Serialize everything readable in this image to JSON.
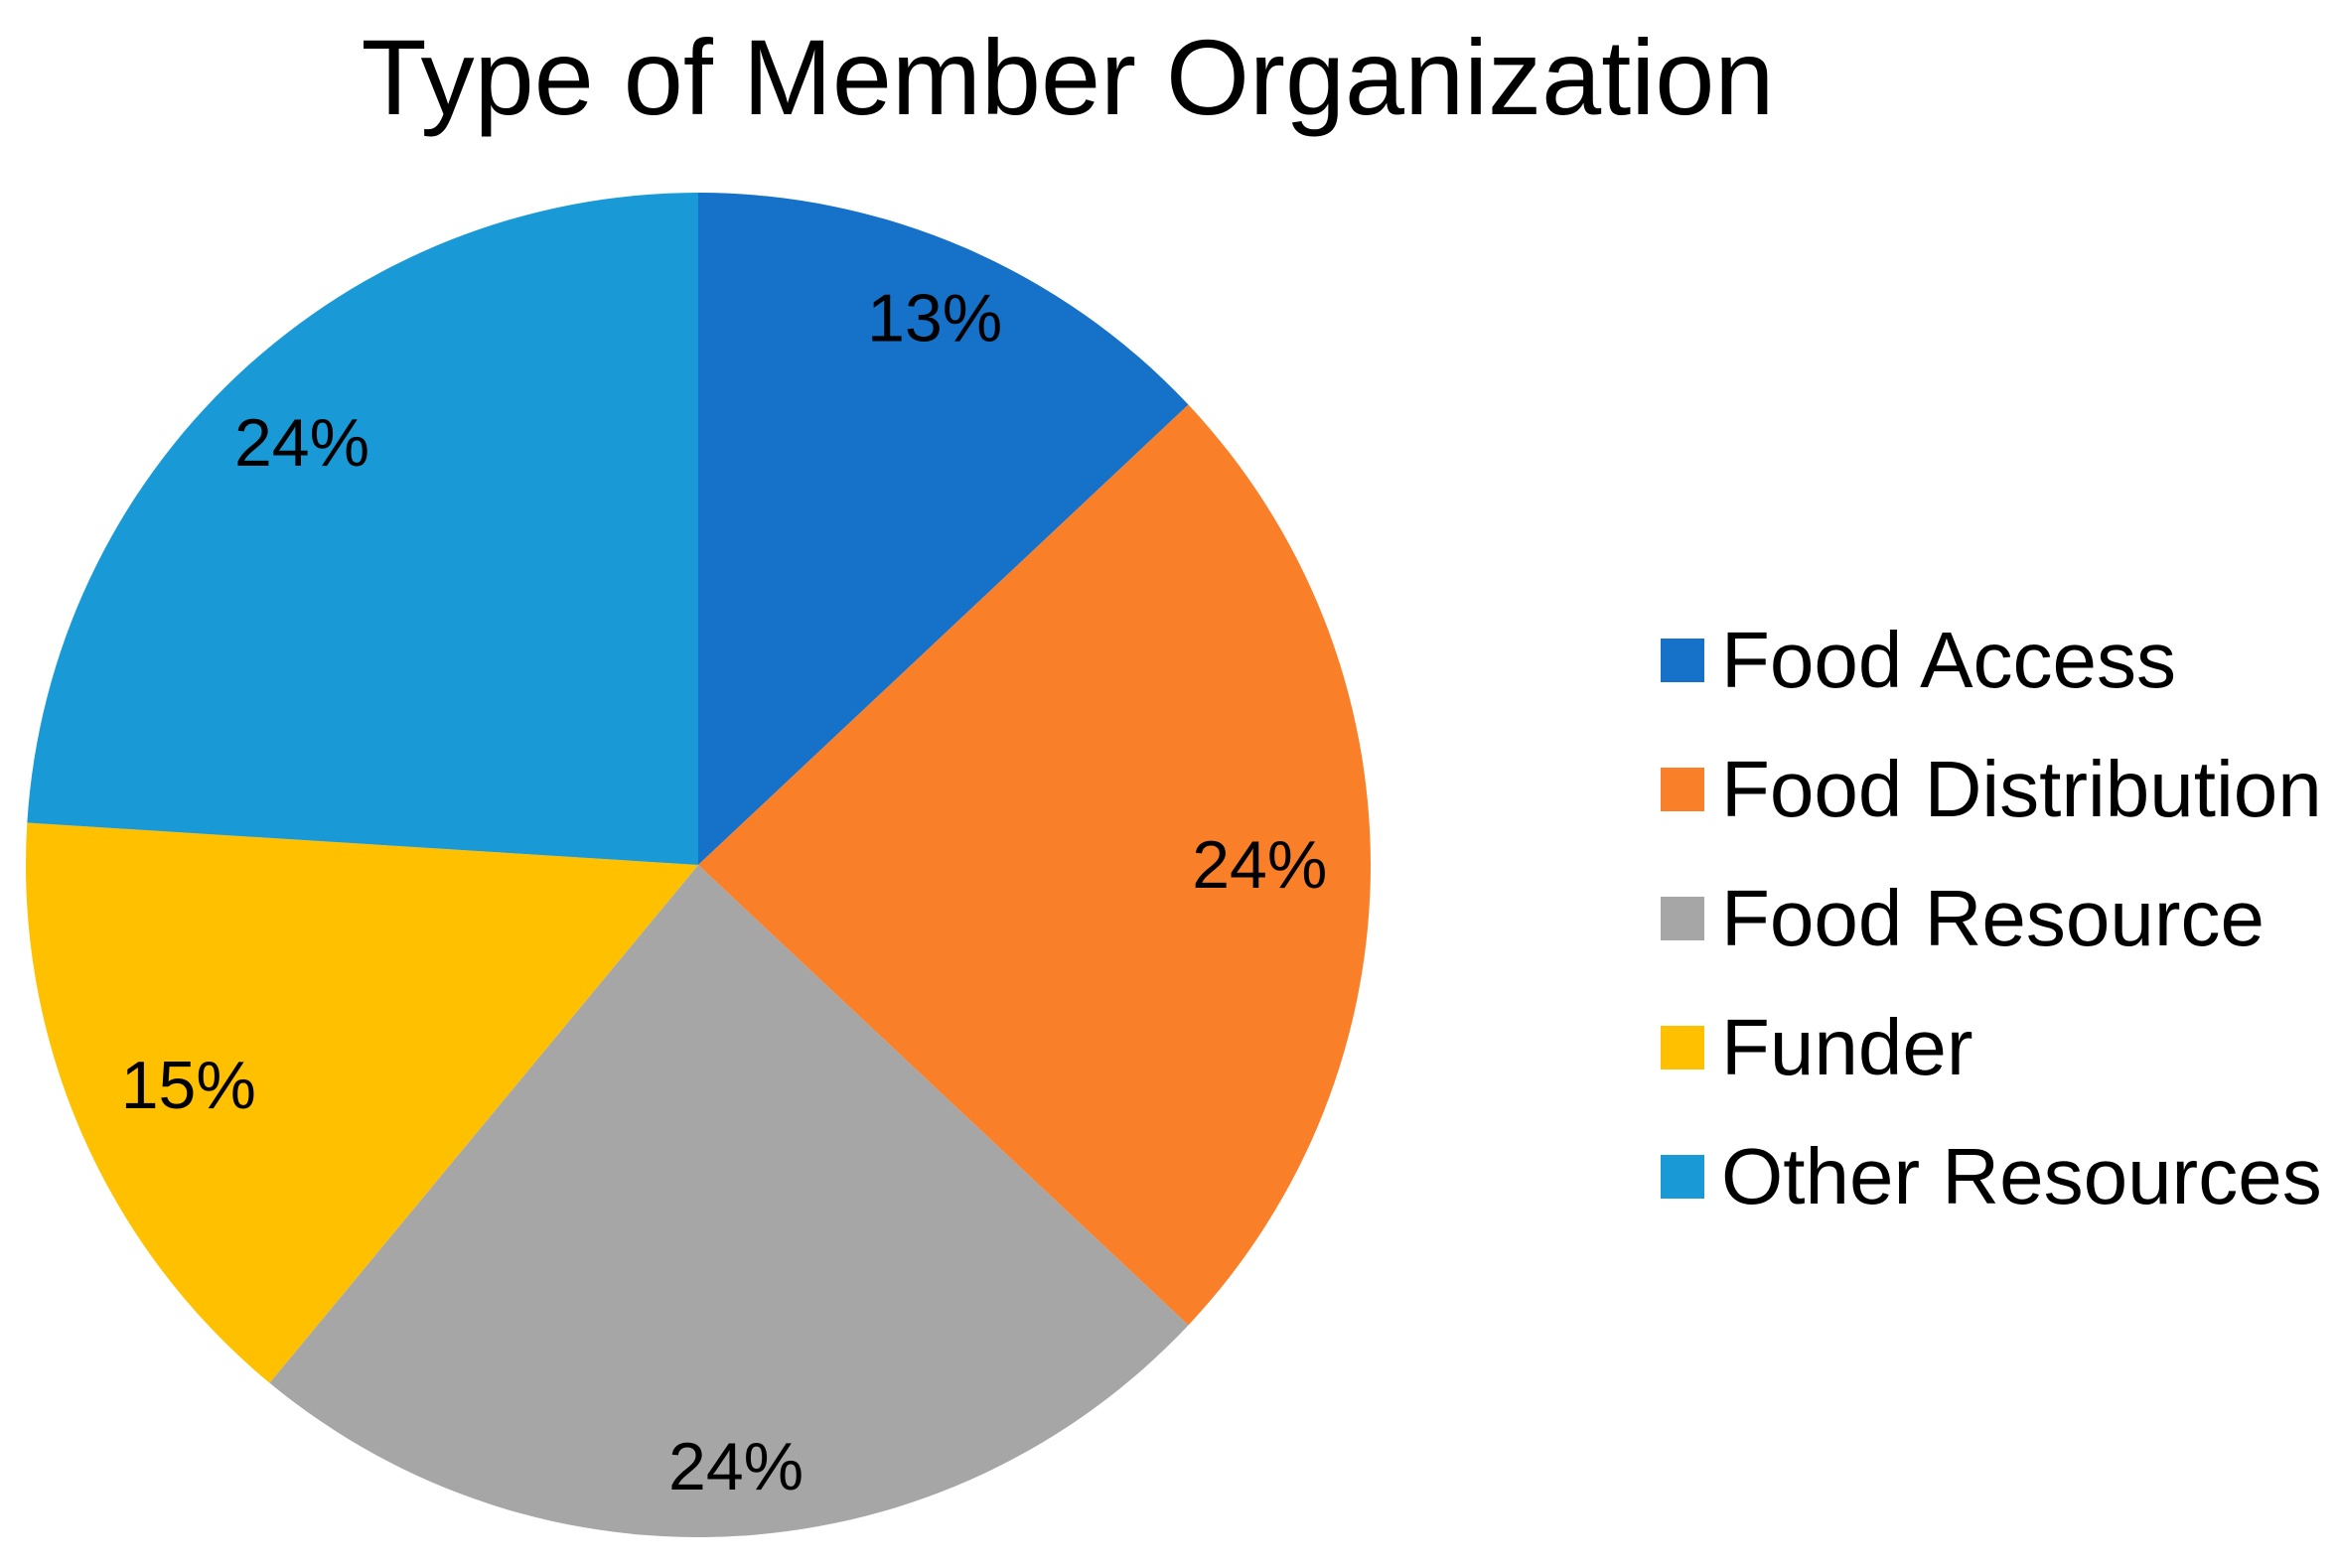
{
  "page": {
    "background": "#ffffff",
    "text_color": "#000000"
  },
  "chart_data": {
    "type": "pie",
    "title": "Type of Member Organization",
    "categories": [
      "Food Access",
      "Food Distribution",
      "Food Resource",
      "Funder",
      "Other Resources"
    ],
    "values": [
      13,
      24,
      24,
      15,
      24
    ],
    "data_labels": [
      "13%",
      "24%",
      "24%",
      "15%",
      "24%"
    ],
    "colors": [
      "#1671C9",
      "#FA7F29",
      "#A6A6A6",
      "#FFC000",
      "#199AD7"
    ],
    "start_angle_deg": 0,
    "direction": "clockwise",
    "legend_position": "right",
    "grid": false,
    "data_label_color": "#000000",
    "label_radius_fractions": [
      0.886,
      0.835,
      0.897,
      0.826,
      0.861
    ]
  }
}
